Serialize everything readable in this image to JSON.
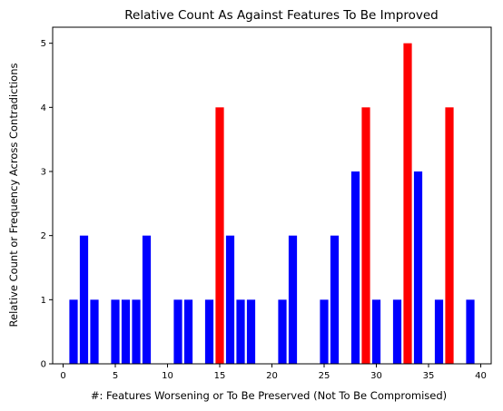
{
  "chart_data": {
    "type": "bar",
    "title": "Relative Count As Against Features To Be Improved",
    "xlabel": "#: Features Worsening or To Be Preserved (Not To Be Compromised)",
    "ylabel": "Relative Count or Frequency Across Contradictions",
    "xlim": [
      -1,
      41
    ],
    "ylim": [
      0,
      5.25
    ],
    "x_ticks": [
      0,
      5,
      10,
      15,
      20,
      25,
      30,
      35,
      40
    ],
    "y_ticks": [
      0,
      1,
      2,
      3,
      4,
      5
    ],
    "grid": false,
    "bar_width": 0.8,
    "colors": {
      "normal": "#0000ff",
      "highlight": "#ff0000"
    },
    "series": [
      {
        "x": [
          1,
          2,
          3,
          5,
          6,
          7,
          8,
          11,
          12,
          14,
          15,
          16,
          17,
          18,
          21,
          22,
          25,
          26,
          28,
          29,
          30,
          32,
          33,
          34,
          36,
          37,
          39
        ],
        "values": [
          1,
          2,
          1,
          1,
          1,
          1,
          2,
          1,
          1,
          1,
          4,
          2,
          1,
          1,
          1,
          2,
          1,
          2,
          3,
          4,
          1,
          1,
          5,
          3,
          1,
          4,
          1
        ],
        "highlight": [
          false,
          false,
          false,
          false,
          false,
          false,
          false,
          false,
          false,
          false,
          true,
          false,
          false,
          false,
          false,
          false,
          false,
          false,
          false,
          true,
          false,
          false,
          true,
          false,
          false,
          true,
          false
        ]
      }
    ]
  }
}
